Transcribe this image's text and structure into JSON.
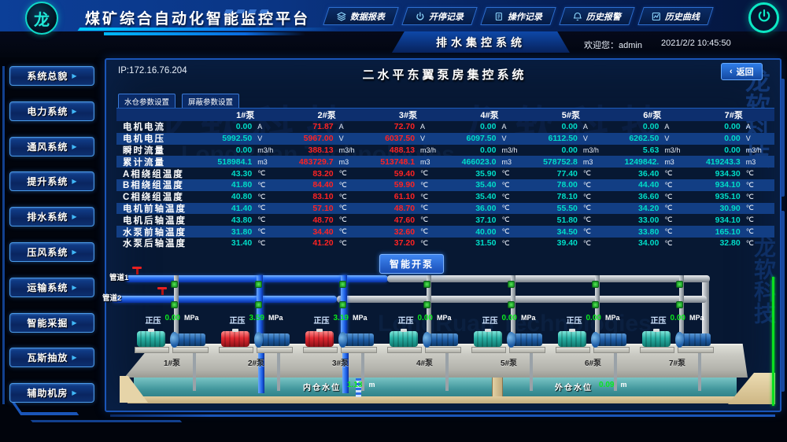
{
  "header": {
    "logo_text": "龙",
    "title": "煤矿综合自动化智能监控平台",
    "nav_buttons": [
      {
        "id": "data-report",
        "label": "数据报表",
        "icon": "report-icon"
      },
      {
        "id": "start-stop-record",
        "label": "开停记录",
        "icon": "power-icon"
      },
      {
        "id": "operation-record",
        "label": "操作记录",
        "icon": "document-icon"
      },
      {
        "id": "history-alarm",
        "label": "历史报警",
        "icon": "bell-icon"
      },
      {
        "id": "history-curve",
        "label": "历史曲线",
        "icon": "curve-icon"
      }
    ]
  },
  "subheader": {
    "system_title": "排水集控系统",
    "welcome": "欢迎您：admin",
    "datetime": "2021/2/2  10:45:50"
  },
  "sidebar": {
    "items": [
      {
        "id": "system-overview",
        "label": "系统总貌"
      },
      {
        "id": "power-system",
        "label": "电力系统"
      },
      {
        "id": "ventilation-system",
        "label": "通风系统"
      },
      {
        "id": "hoist-system",
        "label": "提升系统"
      },
      {
        "id": "drainage-system",
        "label": "排水系统"
      },
      {
        "id": "compressed-air-system",
        "label": "压风系统"
      },
      {
        "id": "transport-system",
        "label": "运输系统"
      },
      {
        "id": "smart-mining",
        "label": "智能采掘"
      },
      {
        "id": "gas-drainage",
        "label": "瓦斯抽放"
      },
      {
        "id": "auxiliary-room",
        "label": "辅助机房"
      }
    ]
  },
  "main": {
    "ip": "IP:172.16.76.204",
    "title": "二水平东翼泵房集控系统",
    "back_chevron": "‹",
    "back_label": "返回",
    "param_buttons": [
      "水仓参数设置",
      "屏蔽参数设置"
    ],
    "smart_label": "智能开泵"
  },
  "table": {
    "columns": [
      "1#泵",
      "2#泵",
      "3#泵",
      "4#泵",
      "5#泵",
      "6#泵",
      "7#泵"
    ],
    "alarm_pumps": [
      2,
      3
    ],
    "rows": [
      {
        "label": "电机电流",
        "unit": "A",
        "values": [
          "0.00",
          "71.87",
          "72.70",
          "0.00",
          "0.00",
          "0.00",
          "0.00"
        ]
      },
      {
        "label": "电机电压",
        "unit": "V",
        "values": [
          "5992.50",
          "5967.00",
          "6037.50",
          "6097.50",
          "6112.50",
          "6262.50",
          "0.00"
        ]
      },
      {
        "label": "瞬时流量",
        "unit": "m3/h",
        "values": [
          "0.00",
          "388.13",
          "488.13",
          "0.00",
          "0.00",
          "5.63",
          "0.00"
        ]
      },
      {
        "label": "累计流量",
        "unit": "m3",
        "values": [
          "518984.1",
          "483729.7",
          "513748.1",
          "466023.0",
          "578752.8",
          "1249842.",
          "419243.3"
        ]
      },
      {
        "label": "A相绕组温度",
        "unit": "℃",
        "values": [
          "43.30",
          "83.20",
          "59.40",
          "35.90",
          "77.40",
          "36.40",
          "934.30"
        ]
      },
      {
        "label": "B相绕组温度",
        "unit": "℃",
        "values": [
          "41.80",
          "84.40",
          "59.90",
          "35.40",
          "78.00",
          "44.40",
          "934.10"
        ]
      },
      {
        "label": "C相绕组温度",
        "unit": "℃",
        "values": [
          "40.80",
          "83.10",
          "61.10",
          "35.40",
          "78.10",
          "36.60",
          "935.10"
        ]
      },
      {
        "label": "电机前轴温度",
        "unit": "℃",
        "values": [
          "41.40",
          "57.10",
          "48.70",
          "36.00",
          "55.50",
          "34.20",
          "30.90"
        ]
      },
      {
        "label": "电机后轴温度",
        "unit": "℃",
        "values": [
          "43.80",
          "48.70",
          "47.60",
          "37.10",
          "51.80",
          "33.00",
          "934.10"
        ]
      },
      {
        "label": "水泵前轴温度",
        "unit": "℃",
        "values": [
          "31.80",
          "34.40",
          "32.60",
          "40.00",
          "34.50",
          "33.80",
          "165.10"
        ]
      },
      {
        "label": "水泵后轴温度",
        "unit": "℃",
        "values": [
          "31.40",
          "41.20",
          "37.20",
          "31.50",
          "39.40",
          "34.00",
          "32.80"
        ]
      }
    ]
  },
  "diagram": {
    "pipe1_label": "管道1",
    "pipe2_label": "管道2",
    "pressure_label": "正压",
    "pressure_unit": "MPa",
    "pumps": [
      {
        "name": "1#泵",
        "pressure": "0.00",
        "running": false
      },
      {
        "name": "2#泵",
        "pressure": "3.59",
        "running": true
      },
      {
        "name": "3#泵",
        "pressure": "3.19",
        "running": true
      },
      {
        "name": "4#泵",
        "pressure": "0.00",
        "running": false
      },
      {
        "name": "5#泵",
        "pressure": "0.00",
        "running": false
      },
      {
        "name": "6#泵",
        "pressure": "0.00",
        "running": false
      },
      {
        "name": "7#泵",
        "pressure": "0.00",
        "running": false
      }
    ],
    "inner_level_label": "内仓水位",
    "inner_level": "1.13",
    "outer_level_label": "外仓水位",
    "outer_level": "0.09",
    "level_unit": "m"
  },
  "watermark": {
    "text": "龙软科技",
    "latin": "LongRuan Technologies"
  },
  "colors": {
    "value_cyan": "#00dcc8",
    "alarm_red": "#ff2222",
    "running_green": "#0ae81e",
    "pipe_blue": "#1e62e8",
    "panel_border": "#1a55b8",
    "header_blue": "#0c3f98"
  }
}
